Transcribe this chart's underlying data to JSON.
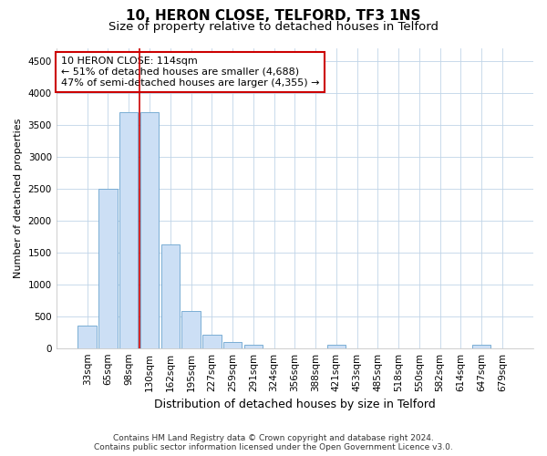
{
  "title": "10, HERON CLOSE, TELFORD, TF3 1NS",
  "subtitle": "Size of property relative to detached houses in Telford",
  "xlabel": "Distribution of detached houses by size in Telford",
  "ylabel": "Number of detached properties",
  "categories": [
    "33sqm",
    "65sqm",
    "98sqm",
    "130sqm",
    "162sqm",
    "195sqm",
    "227sqm",
    "259sqm",
    "291sqm",
    "324sqm",
    "356sqm",
    "388sqm",
    "421sqm",
    "453sqm",
    "485sqm",
    "518sqm",
    "550sqm",
    "582sqm",
    "614sqm",
    "647sqm",
    "679sqm"
  ],
  "values": [
    350,
    2500,
    3700,
    3700,
    1620,
    580,
    215,
    100,
    55,
    0,
    0,
    0,
    55,
    0,
    0,
    0,
    0,
    0,
    0,
    55,
    0
  ],
  "bar_color": "#ccdff5",
  "bar_edge_color": "#7aadd4",
  "highlight_line_color": "#cc0000",
  "annotation_text": "10 HERON CLOSE: 114sqm\n← 51% of detached houses are smaller (4,688)\n47% of semi-detached houses are larger (4,355) →",
  "annotation_box_color": "#ffffff",
  "annotation_box_edge_color": "#cc0000",
  "ylim": [
    0,
    4700
  ],
  "yticks": [
    0,
    500,
    1000,
    1500,
    2000,
    2500,
    3000,
    3500,
    4000,
    4500
  ],
  "background_color": "#ffffff",
  "grid_color": "#c0d4e8",
  "footer_line1": "Contains HM Land Registry data © Crown copyright and database right 2024.",
  "footer_line2": "Contains public sector information licensed under the Open Government Licence v3.0.",
  "title_fontsize": 11,
  "subtitle_fontsize": 9.5,
  "xlabel_fontsize": 9,
  "ylabel_fontsize": 8,
  "tick_fontsize": 7.5,
  "annotation_fontsize": 8,
  "footer_fontsize": 6.5
}
